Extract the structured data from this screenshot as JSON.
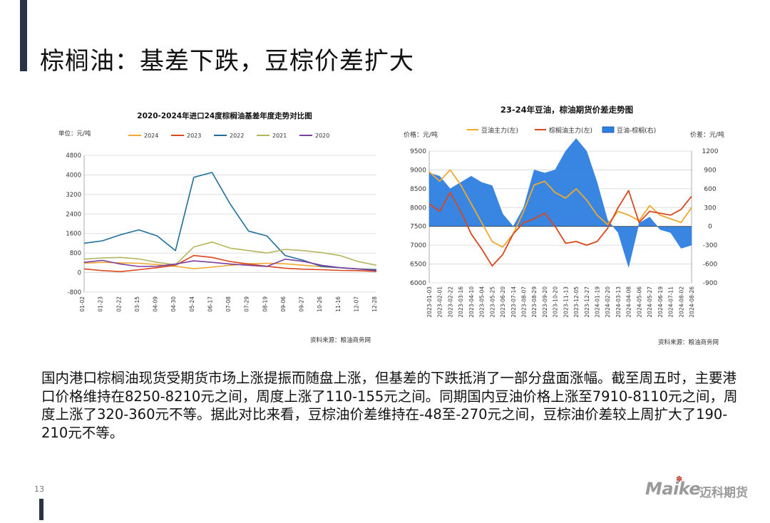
{
  "page": {
    "title": "棕榈油：基差下跌，豆棕价差扩大",
    "body": "国内港口棕榈油现货受期货市场上涨提振而随盘上涨，但基差的下跌抵消了一部分盘面涨幅。截至周五时，主要港口价格维持在8250-8210元之间，周度上涨了110-155元之间。同期国内豆油价格上涨至7910-8110元之间，周度上涨了320-360元不等。据此对比来看，豆棕油价差维持在-48至-270元之间，豆棕油价差较上周扩大了190-210元不等。",
    "page_number": "13",
    "logo": {
      "brand": "Maike",
      "brand_cn": "迈科期货",
      "mark_color": "#c0392b"
    }
  },
  "chart_data": [
    {
      "type": "line",
      "title": "2020-2024年进口24度棕榈油基差年度走势对比图",
      "unit_label": "单位：元/吨",
      "source": "资料来源：粮油商务网",
      "ylim": [
        -800,
        4800
      ],
      "yticks": [
        "4800",
        "4000",
        "3200",
        "2400",
        "1600",
        "800",
        "0",
        "-800"
      ],
      "xticks": [
        "01-02",
        "01-23",
        "02-22",
        "03-15",
        "04-09",
        "04-30",
        "05-24",
        "06-17",
        "07-08",
        "07-29",
        "08-19",
        "09-06",
        "09-27",
        "10-26",
        "11-16",
        "12-07",
        "12-28"
      ],
      "grid": true,
      "legend_position": "top",
      "series": [
        {
          "name": "2024",
          "color": "#f0a830",
          "values": [
            380,
            420,
            400,
            380,
            330,
            260,
            160,
            220,
            300,
            360,
            380,
            360,
            300,
            240,
            200,
            150,
            130
          ]
        },
        {
          "name": "2023",
          "color": "#d9471e",
          "values": [
            150,
            80,
            40,
            120,
            200,
            300,
            700,
            620,
            450,
            350,
            260,
            180,
            140,
            120,
            90,
            80,
            50
          ]
        },
        {
          "name": "2022",
          "color": "#1f6e9c",
          "values": [
            1200,
            1300,
            1550,
            1750,
            1500,
            900,
            3900,
            4100,
            2800,
            1700,
            1500,
            700,
            500,
            250,
            200,
            150,
            120
          ]
        },
        {
          "name": "2021",
          "color": "#b5b55c",
          "values": [
            550,
            600,
            620,
            560,
            420,
            320,
            1050,
            1250,
            1000,
            900,
            800,
            950,
            900,
            820,
            700,
            450,
            300
          ]
        },
        {
          "name": "2020",
          "color": "#7b3fa0",
          "values": [
            420,
            500,
            350,
            250,
            260,
            350,
            480,
            420,
            350,
            300,
            250,
            550,
            460,
            300,
            200,
            150,
            80
          ]
        }
      ]
    },
    {
      "type": "line",
      "title": "23-24年豆油，棕油期货价差走势图",
      "left_axis_label": "价格：元/吨",
      "right_axis_label": "价差：元/吨",
      "source": "资料来源：粮油商务网",
      "ylim_left": [
        6000,
        9500
      ],
      "ylim_right": [
        -900,
        1200
      ],
      "yticks_left": [
        "9500",
        "9000",
        "8500",
        "8000",
        "7500",
        "7000",
        "6500",
        "6000"
      ],
      "yticks_right": [
        "1200",
        "900",
        "600",
        "300",
        "0",
        "-300",
        "-600",
        "-900"
      ],
      "xticks": [
        "2023-01-03",
        "2023-02-01",
        "2023-02-22",
        "2023-03-16",
        "2023-04-10",
        "2023-05-04",
        "2023-05-25",
        "2023-06-20",
        "2023-07-14",
        "2023-08-07",
        "2023-08-29",
        "2023-09-20",
        "2023-10-20",
        "2023-11-13",
        "2023-12-05",
        "2023-12-27",
        "2024-01-19",
        "2024-02-20",
        "2024-03-13",
        "2024-04-08",
        "2024-05-06",
        "2024-05-27",
        "2024-06-19",
        "2024-07-11",
        "2024-08-02",
        "2024-08-26"
      ],
      "grid": true,
      "legend_position": "top",
      "series": [
        {
          "name": "豆油主力(左)",
          "axis": "left",
          "color": "#f0a830",
          "values": [
            8950,
            8700,
            9000,
            8600,
            8100,
            7600,
            7100,
            6950,
            7300,
            7900,
            8600,
            8700,
            8400,
            8250,
            8500,
            8200,
            7800,
            7550,
            7900,
            7800,
            7650,
            8050,
            7800,
            7700,
            7600,
            8000
          ]
        },
        {
          "name": "棕榈油主力(左)",
          "axis": "left",
          "color": "#d9471e",
          "values": [
            8100,
            7900,
            8400,
            7900,
            7300,
            6900,
            6450,
            6750,
            7300,
            7600,
            7700,
            7850,
            7500,
            7050,
            7100,
            7000,
            7100,
            7450,
            8000,
            8450,
            7600,
            7900,
            7850,
            7800,
            7950,
            8300
          ]
        },
        {
          "name": "豆油-棕榈(右)",
          "axis": "right",
          "color": "#2d7fe0",
          "values": [
            850,
            800,
            600,
            700,
            800,
            700,
            650,
            200,
            0,
            300,
            900,
            850,
            900,
            1200,
            1400,
            1200,
            700,
            100,
            -100,
            -650,
            50,
            150,
            -50,
            -100,
            -350,
            -300
          ]
        }
      ]
    }
  ]
}
